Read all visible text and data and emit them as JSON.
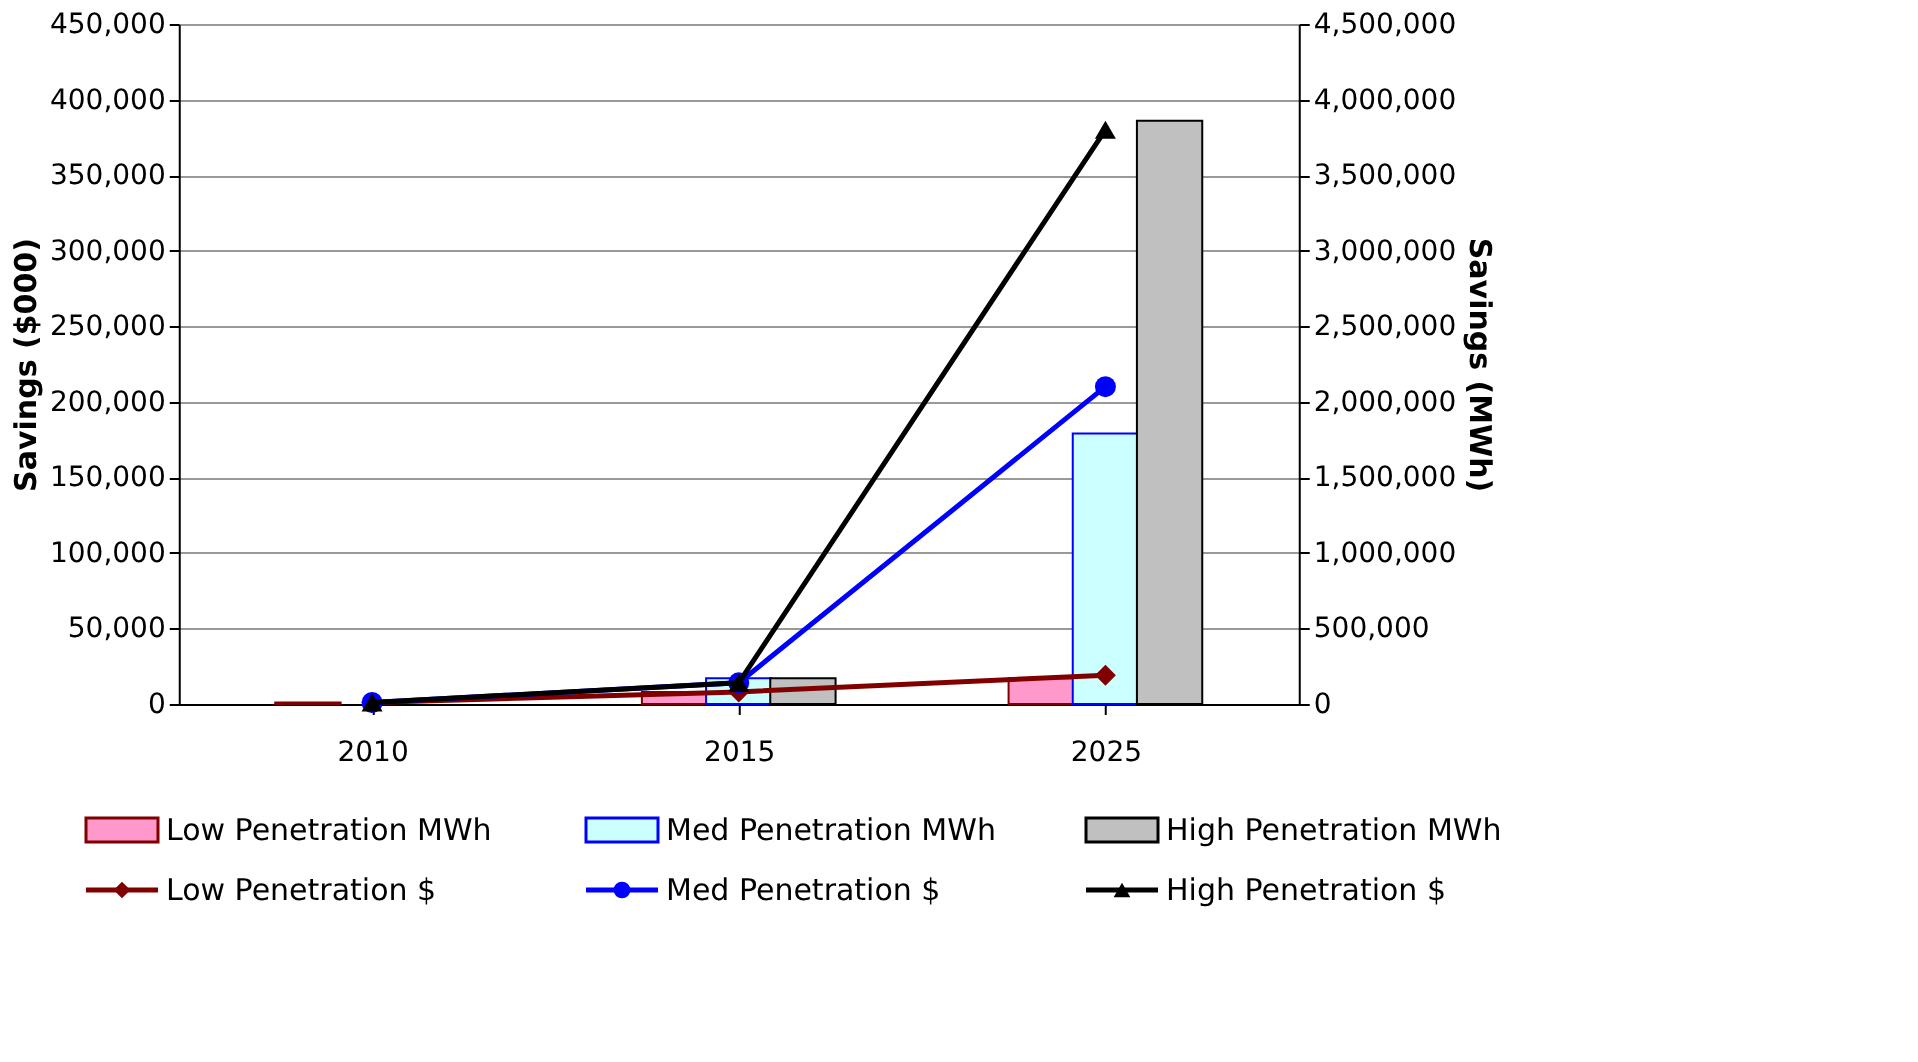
{
  "chart_data": {
    "type": "bar",
    "categories": [
      "2010",
      "2015",
      "2025"
    ],
    "ylabel": "Savings ($000)",
    "y2label": "Savings (MWh)",
    "ylim": [
      0,
      450000
    ],
    "yticks": [
      0,
      {
        "value": 50000,
        "label": "50,000"
      },
      {
        "value": 100000,
        "label": "100,000"
      },
      {
        "value": 150000,
        "label": "150,000"
      },
      {
        "value": 200000,
        "label": "200,000"
      },
      {
        "value": 250000,
        "label": "250,000"
      },
      {
        "value": 300000,
        "label": "300,000"
      },
      {
        "value": 350000,
        "label": "350,000"
      },
      {
        "value": 400000,
        "label": "400,000"
      },
      {
        "value": 450000,
        "label": "450,000"
      }
    ],
    "y2lim": [
      0,
      4500000
    ],
    "y2ticks": [
      0,
      {
        "value": 500000,
        "label": "500,000"
      },
      {
        "value": 1000000,
        "label": "1,000,000"
      },
      {
        "value": 1500000,
        "label": "1,500,000"
      },
      {
        "value": 2000000,
        "label": "2,000,000"
      },
      {
        "value": 2500000,
        "label": "2,500,000"
      },
      {
        "value": 3000000,
        "label": "3,000,000"
      },
      {
        "value": 3500000,
        "label": "3,500,000"
      },
      {
        "value": 4000000,
        "label": "4,000,000"
      },
      {
        "value": 4500000,
        "label": "4,500,000"
      }
    ],
    "grid": "y",
    "legend": "bottom",
    "series": [
      {
        "name": "Low Penetration MWh",
        "axis": "y2",
        "color": "#ff99cc",
        "values": [
          10000,
          80000,
          170000
        ]
      },
      {
        "name": "Med Penetration MWh",
        "axis": "y2",
        "color": "#ccffff",
        "values": [
          null,
          170000,
          1790000
        ]
      },
      {
        "name": "High Penetration MWh",
        "axis": "y2",
        "color": "#c0c0c0",
        "values": [
          null,
          170000,
          3860000
        ]
      },
      {
        "name": "Low Penetration $",
        "type": "line",
        "axis": "y",
        "color": "#800000",
        "marker": "diamond",
        "values": [
          1000,
          8000,
          19000
        ]
      },
      {
        "name": "Med Penetration $",
        "type": "line",
        "axis": "y",
        "color": "#0000ff",
        "marker": "circle",
        "values": [
          1000,
          14000,
          210000
        ]
      },
      {
        "name": "High Penetration $",
        "type": "line",
        "axis": "y",
        "color": "#000000",
        "marker": "triangle",
        "values": [
          1000,
          14000,
          380000
        ]
      }
    ]
  }
}
